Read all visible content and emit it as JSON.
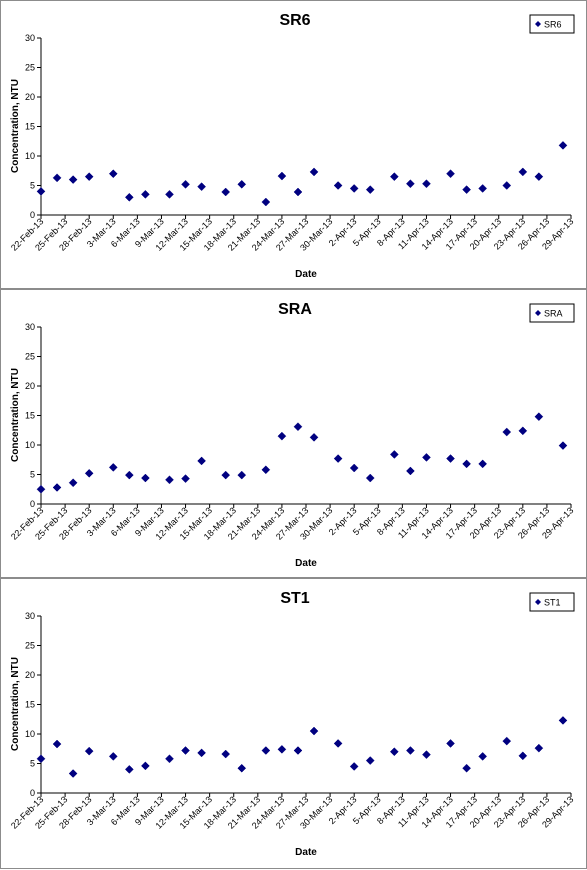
{
  "chart_data": [
    {
      "type": "scatter",
      "title": "SR6",
      "xlabel": "Date",
      "ylabel": "Concentration, NTU",
      "ylim": [
        0,
        30
      ],
      "yticks": [
        "0",
        "5",
        "10",
        "15",
        "20",
        "25",
        "30"
      ],
      "xtick_labels": [
        "22-Feb-13",
        "25-Feb-13",
        "28-Feb-13",
        "3-Mar-13",
        "6-Mar-13",
        "9-Mar-13",
        "12-Mar-13",
        "15-Mar-13",
        "18-Mar-13",
        "21-Mar-13",
        "24-Mar-13",
        "27-Mar-13",
        "30-Mar-13",
        "2-Apr-13",
        "5-Apr-13",
        "8-Apr-13",
        "11-Apr-13",
        "14-Apr-13",
        "17-Apr-13",
        "20-Apr-13",
        "23-Apr-13",
        "26-Apr-13",
        "29-Apr-13"
      ],
      "legend_position": "top-right",
      "grid": false,
      "marker_color": "#000080",
      "series": [
        {
          "name": "SR6",
          "points": [
            [
              "22-Feb-13",
              4.0
            ],
            [
              "24-Feb-13",
              6.3
            ],
            [
              "26-Feb-13",
              6.0
            ],
            [
              "28-Feb-13",
              6.5
            ],
            [
              "3-Mar-13",
              7.0
            ],
            [
              "5-Mar-13",
              3.0
            ],
            [
              "7-Mar-13",
              3.5
            ],
            [
              "10-Mar-13",
              3.5
            ],
            [
              "12-Mar-13",
              5.2
            ],
            [
              "14-Mar-13",
              4.8
            ],
            [
              "17-Mar-13",
              3.9
            ],
            [
              "19-Mar-13",
              5.2
            ],
            [
              "22-Mar-13",
              2.2
            ],
            [
              "24-Mar-13",
              6.6
            ],
            [
              "26-Mar-13",
              3.9
            ],
            [
              "28-Mar-13",
              7.3
            ],
            [
              "31-Mar-13",
              5.0
            ],
            [
              "2-Apr-13",
              4.5
            ],
            [
              "4-Apr-13",
              4.3
            ],
            [
              "7-Apr-13",
              6.5
            ],
            [
              "9-Apr-13",
              5.3
            ],
            [
              "11-Apr-13",
              5.3
            ],
            [
              "14-Apr-13",
              7.0
            ],
            [
              "16-Apr-13",
              4.3
            ],
            [
              "18-Apr-13",
              4.5
            ],
            [
              "21-Apr-13",
              5.0
            ],
            [
              "23-Apr-13",
              7.3
            ],
            [
              "25-Apr-13",
              6.5
            ],
            [
              "28-Apr-13",
              11.8
            ]
          ]
        }
      ]
    },
    {
      "type": "scatter",
      "title": "SRA",
      "xlabel": "Date",
      "ylabel": "Concentration, NTU",
      "ylim": [
        0,
        30
      ],
      "yticks": [
        "0",
        "5",
        "10",
        "15",
        "20",
        "25",
        "30"
      ],
      "xtick_labels": [
        "22-Feb-13",
        "25-Feb-13",
        "28-Feb-13",
        "3-Mar-13",
        "6-Mar-13",
        "9-Mar-13",
        "12-Mar-13",
        "15-Mar-13",
        "18-Mar-13",
        "21-Mar-13",
        "24-Mar-13",
        "27-Mar-13",
        "30-Mar-13",
        "2-Apr-13",
        "5-Apr-13",
        "8-Apr-13",
        "11-Apr-13",
        "14-Apr-13",
        "17-Apr-13",
        "20-Apr-13",
        "23-Apr-13",
        "26-Apr-13",
        "29-Apr-13"
      ],
      "legend_position": "top-right",
      "grid": false,
      "marker_color": "#000080",
      "series": [
        {
          "name": "SRA",
          "points": [
            [
              "22-Feb-13",
              2.5
            ],
            [
              "24-Feb-13",
              2.8
            ],
            [
              "26-Feb-13",
              3.6
            ],
            [
              "28-Feb-13",
              5.2
            ],
            [
              "3-Mar-13",
              6.2
            ],
            [
              "5-Mar-13",
              4.9
            ],
            [
              "7-Mar-13",
              4.4
            ],
            [
              "10-Mar-13",
              4.1
            ],
            [
              "12-Mar-13",
              4.3
            ],
            [
              "14-Mar-13",
              7.3
            ],
            [
              "17-Mar-13",
              4.9
            ],
            [
              "19-Mar-13",
              4.9
            ],
            [
              "22-Mar-13",
              5.8
            ],
            [
              "24-Mar-13",
              11.5
            ],
            [
              "26-Mar-13",
              13.1
            ],
            [
              "28-Mar-13",
              11.3
            ],
            [
              "31-Mar-13",
              7.7
            ],
            [
              "2-Apr-13",
              6.1
            ],
            [
              "4-Apr-13",
              4.4
            ],
            [
              "7-Apr-13",
              8.4
            ],
            [
              "9-Apr-13",
              5.6
            ],
            [
              "11-Apr-13",
              7.9
            ],
            [
              "14-Apr-13",
              7.7
            ],
            [
              "16-Apr-13",
              6.8
            ],
            [
              "18-Apr-13",
              6.8
            ],
            [
              "21-Apr-13",
              12.2
            ],
            [
              "23-Apr-13",
              12.4
            ],
            [
              "25-Apr-13",
              14.8
            ],
            [
              "28-Apr-13",
              9.9
            ]
          ]
        }
      ]
    },
    {
      "type": "scatter",
      "title": "ST1",
      "xlabel": "Date",
      "ylabel": "Concentration, NTU",
      "ylim": [
        0,
        30
      ],
      "yticks": [
        "0",
        "5",
        "10",
        "15",
        "20",
        "25",
        "30"
      ],
      "xtick_labels": [
        "22-Feb-13",
        "25-Feb-13",
        "28-Feb-13",
        "3-Mar-13",
        "6-Mar-13",
        "9-Mar-13",
        "12-Mar-13",
        "15-Mar-13",
        "18-Mar-13",
        "21-Mar-13",
        "24-Mar-13",
        "27-Mar-13",
        "30-Mar-13",
        "2-Apr-13",
        "5-Apr-13",
        "8-Apr-13",
        "11-Apr-13",
        "14-Apr-13",
        "17-Apr-13",
        "20-Apr-13",
        "23-Apr-13",
        "26-Apr-13",
        "29-Apr-13"
      ],
      "legend_position": "top-right",
      "grid": false,
      "marker_color": "#000080",
      "series": [
        {
          "name": "ST1",
          "points": [
            [
              "22-Feb-13",
              5.8
            ],
            [
              "24-Feb-13",
              8.3
            ],
            [
              "26-Feb-13",
              3.3
            ],
            [
              "28-Feb-13",
              7.1
            ],
            [
              "3-Mar-13",
              6.2
            ],
            [
              "5-Mar-13",
              4.0
            ],
            [
              "7-Mar-13",
              4.6
            ],
            [
              "10-Mar-13",
              5.8
            ],
            [
              "12-Mar-13",
              7.2
            ],
            [
              "14-Mar-13",
              6.8
            ],
            [
              "17-Mar-13",
              6.6
            ],
            [
              "19-Mar-13",
              4.2
            ],
            [
              "22-Mar-13",
              7.2
            ],
            [
              "24-Mar-13",
              7.4
            ],
            [
              "26-Mar-13",
              7.2
            ],
            [
              "28-Mar-13",
              10.5
            ],
            [
              "31-Mar-13",
              8.4
            ],
            [
              "2-Apr-13",
              4.5
            ],
            [
              "4-Apr-13",
              5.5
            ],
            [
              "7-Apr-13",
              7.0
            ],
            [
              "9-Apr-13",
              7.2
            ],
            [
              "11-Apr-13",
              6.5
            ],
            [
              "14-Apr-13",
              8.4
            ],
            [
              "16-Apr-13",
              4.2
            ],
            [
              "18-Apr-13",
              6.2
            ],
            [
              "21-Apr-13",
              8.8
            ],
            [
              "23-Apr-13",
              6.3
            ],
            [
              "25-Apr-13",
              7.6
            ],
            [
              "28-Apr-13",
              12.3
            ]
          ]
        }
      ]
    }
  ]
}
